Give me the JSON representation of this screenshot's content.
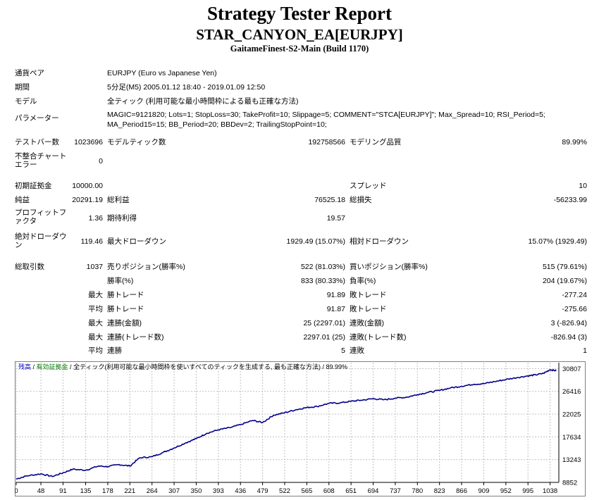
{
  "report": {
    "title": "Strategy Tester Report",
    "ea_name": "STAR_CANYON_EA[EURJPY]",
    "server": "GaitameFinest-S2-Main (Build 1170)"
  },
  "settings": {
    "symbol_label": "通貨ペア",
    "symbol_value": "EURJPY (Euro vs Japanese Yen)",
    "period_label": "期間",
    "period_value": "5分足(M5) 2005.01.12 18:40 - 2019.01.09 12:50",
    "model_label": "モデル",
    "model_value": "全ティック (利用可能な最小時間枠による最も正確な方法)",
    "params_label": "パラメーター",
    "params_line1": "MAGIC=9121820; Lots=1; StopLoss=30; TakeProfit=10; Slippage=5; COMMENT=\"STCA[EURJPY]\"; Max_Spread=10; RSI_Period=5;",
    "params_line2": "MA_Period15=15; BB_Period=20; BBDev=2; TrailingStopPoint=10;"
  },
  "quality": {
    "bars_label": "テストバー数",
    "bars_value": "1023696",
    "ticks_label": "モデルティック数",
    "ticks_value": "192758566",
    "modeling_label": "モデリング品質",
    "modeling_value": "89.99%",
    "mismatch_label": "不整合チャート エラー",
    "mismatch_value": "0"
  },
  "summary": {
    "deposit_label": "初期証拠金",
    "deposit_value": "10000.00",
    "spread_label": "スプレッド",
    "spread_value": "10",
    "net_label": "純益",
    "net_value": "20291.19",
    "gross_profit_label": "総利益",
    "gross_profit_value": "76525.18",
    "gross_loss_label": "総損失",
    "gross_loss_value": "-56233.99",
    "pf_label": "プロフィットファクタ",
    "pf_value": "1.36",
    "expected_label": "期待利得",
    "expected_value": "19.57",
    "abs_dd_label": "絶対ドローダウン",
    "abs_dd_value": "119.46",
    "max_dd_label": "最大ドローダウン",
    "max_dd_value": "1929.49 (15.07%)",
    "rel_dd_label": "相対ドローダウン",
    "rel_dd_value": "15.07% (1929.49)"
  },
  "trades": {
    "total_label": "総取引数",
    "total_value": "1037",
    "short_label": "売りポジション(勝率%)",
    "short_value": "522 (81.03%)",
    "long_label": "買いポジション(勝率%)",
    "long_value": "515 (79.61%)",
    "win_label": "勝率(%)",
    "win_value": "833 (80.33%)",
    "loss_label": "負率(%)",
    "loss_value": "204 (19.67%)",
    "q_max": "最大",
    "q_avg": "平均",
    "largest_win_label": "勝トレード",
    "largest_win_value": "91.89",
    "largest_loss_label": "敗トレード",
    "largest_loss_value": "-277.24",
    "avg_win_label": "勝トレード",
    "avg_win_value": "91.87",
    "avg_loss_label": "敗トレード",
    "avg_loss_value": "-275.66",
    "max_cons_wins_label": "連勝(金額)",
    "max_cons_wins_value": "25 (2297.01)",
    "max_cons_losses_label": "連敗(金額)",
    "max_cons_losses_value": "3 (-826.94)",
    "max_cons_profit_label": "連勝(トレード数)",
    "max_cons_profit_value": "2297.01 (25)",
    "max_cons_loss_label": "連敗(トレード数)",
    "max_cons_loss_value": "-826.94 (3)",
    "avg_cons_wins_label": "連勝",
    "avg_cons_wins_value": "5",
    "avg_cons_losses_label": "連敗",
    "avg_cons_losses_value": "1"
  },
  "chart_data": {
    "type": "line",
    "legend": {
      "balance": "残高",
      "sep1": " / ",
      "equity": "有効証拠金",
      "sep2": " / ",
      "model": "全ティック(利用可能な最小時間枠を使いすべてのティックを生成する, 最も正確な方法)",
      "sep3": " / ",
      "quality": "89.99%"
    },
    "colors": {
      "balance": "#00008b",
      "legend_balance": "#0000cc",
      "legend_equity": "#008000",
      "grid": "#c0c0c0"
    },
    "x_ticks": [
      0,
      48,
      91,
      135,
      178,
      221,
      264,
      307,
      350,
      393,
      436,
      479,
      522,
      565,
      608,
      651,
      694,
      737,
      780,
      823,
      866,
      909,
      952,
      995,
      1038
    ],
    "y_ticks": [
      8852,
      13243,
      17634,
      22025,
      26416,
      30807
    ],
    "xlim": [
      0,
      1055
    ],
    "ylim": [
      8852,
      31950
    ],
    "grid": true,
    "series": [
      {
        "x": [
          0,
          20,
          48,
          70,
          91,
          110,
          135,
          160,
          178,
          200,
          221,
          240,
          264,
          285,
          307,
          330,
          350,
          370,
          393,
          415,
          436,
          460,
          479,
          500,
          522,
          545,
          565,
          585,
          608,
          630,
          651,
          670,
          694,
          715,
          737,
          760,
          780,
          800,
          823,
          845,
          866,
          890,
          909,
          930,
          952,
          975,
          995,
          1010,
          1025,
          1038,
          1050
        ],
        "y": [
          9500,
          10100,
          10500,
          10000,
          10700,
          11400,
          11200,
          12000,
          11900,
          12300,
          12000,
          13600,
          13800,
          14600,
          15500,
          16500,
          17300,
          18300,
          19000,
          19400,
          20000,
          20800,
          20400,
          21800,
          22300,
          22900,
          23300,
          23500,
          24100,
          24200,
          24500,
          24700,
          25000,
          24800,
          25100,
          25300,
          25800,
          26200,
          26600,
          27100,
          27400,
          27800,
          27900,
          28300,
          28700,
          29100,
          29400,
          29600,
          29900,
          30600,
          30400
        ]
      }
    ]
  }
}
